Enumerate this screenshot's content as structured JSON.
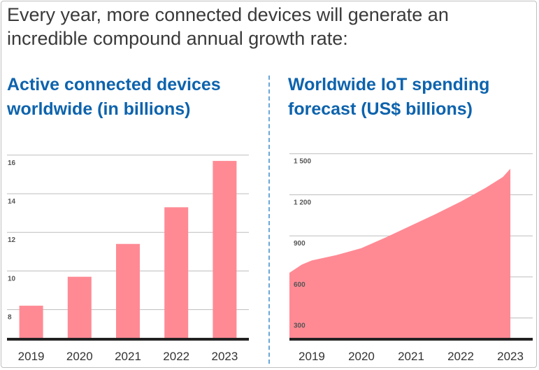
{
  "headline": "Every year, more connected devices will generate an incredible compound annual growth rate:",
  "colors": {
    "bar": "#ff8a94",
    "area": "#ff8a94",
    "title": "#0d63ad",
    "divider": "#6aa7d8"
  },
  "chart_data": [
    {
      "type": "bar",
      "title": "Active connected devices worldwide (in billions)",
      "categories": [
        "2019",
        "2020",
        "2021",
        "2022",
        "2023"
      ],
      "values": [
        8.2,
        9.7,
        11.4,
        13.3,
        15.7
      ],
      "ylim": [
        6.5,
        16.5
      ],
      "yticks": [
        "8",
        "10",
        "12",
        "14",
        "16"
      ],
      "grid": true
    },
    {
      "type": "area",
      "title": "Worldwide IoT spending forecast (US$ billions)",
      "categories": [
        "2019",
        "2020",
        "2021",
        "2022",
        "2023"
      ],
      "x": [
        2018.55,
        2018.8,
        2019.0,
        2019.5,
        2020.0,
        2020.5,
        2021.0,
        2021.5,
        2022.0,
        2022.5,
        2022.85,
        2023.0
      ],
      "values": [
        630,
        690,
        720,
        760,
        810,
        890,
        975,
        1060,
        1150,
        1250,
        1330,
        1390
      ],
      "xlim": [
        2018.55,
        2023.45
      ],
      "ylim": [
        150,
        1560
      ],
      "yticks": [
        "300",
        "600",
        "900",
        "1 200",
        "1 500"
      ],
      "grid": true
    }
  ]
}
